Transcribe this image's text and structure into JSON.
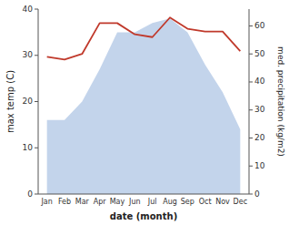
{
  "chart_data": {
    "type": "line",
    "xlabel": "date (month)",
    "ylabel": "max temp (C)",
    "y2label": "med. precipitation (kg/m2)",
    "categories": [
      "Jan",
      "Feb",
      "Mar",
      "Apr",
      "May",
      "Jun",
      "Jul",
      "Aug",
      "Sep",
      "Oct",
      "Nov",
      "Dec"
    ],
    "series": [
      {
        "type": "area",
        "color": "#b8cce8",
        "values": [
          16,
          16,
          20,
          27,
          35,
          35,
          37,
          38,
          35,
          28,
          22,
          14
        ]
      },
      {
        "type": "line",
        "color": "#c0392b",
        "axis": "y2",
        "values": [
          49,
          48,
          50,
          61,
          61,
          57,
          56,
          63,
          59,
          58,
          58,
          51
        ]
      }
    ],
    "ylim": [
      0,
      40
    ],
    "yticks": [
      0,
      10,
      20,
      30,
      40
    ],
    "y2lim": [
      0,
      66
    ],
    "y2ticks": [
      0,
      10,
      20,
      30,
      40,
      50,
      60
    ],
    "grid": false
  }
}
